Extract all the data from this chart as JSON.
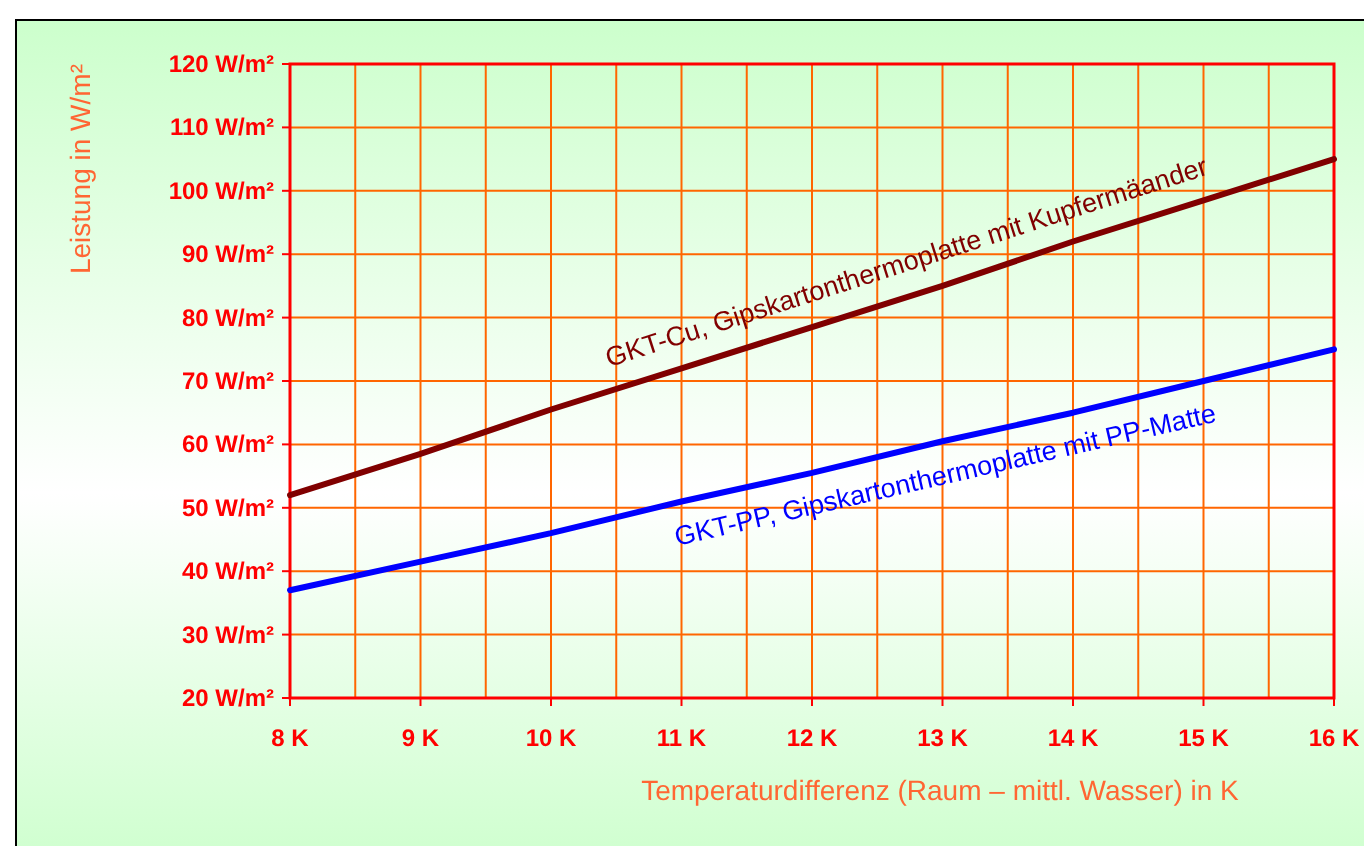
{
  "chart_data": {
    "type": "line",
    "xlabel": "Temperaturdifferenz (Raum – mittl. Wasser) in K",
    "ylabel": "Leistung in W/m²",
    "x": [
      8,
      9,
      10,
      11,
      12,
      13,
      14,
      15,
      16
    ],
    "series": [
      {
        "name": "GKT-Cu, Gipskartonthermoplatte mit Kupfermäander",
        "color": "#800000",
        "values": [
          52,
          58.5,
          65.5,
          72,
          78.5,
          85,
          92,
          98.5,
          105
        ]
      },
      {
        "name": "GKT-PP, Gipskartonthermoplatte mit PP-Matte",
        "color": "#0000ff",
        "values": [
          37,
          41.5,
          46,
          51,
          55.5,
          60.5,
          65,
          70,
          75
        ]
      }
    ],
    "xlim": [
      8,
      16
    ],
    "xticks": [
      {
        "value": 8,
        "label": "8 K"
      },
      {
        "value": 8.5,
        "label": null
      },
      {
        "value": 9,
        "label": "9 K"
      },
      {
        "value": 9.5,
        "label": null
      },
      {
        "value": 10,
        "label": "10 K"
      },
      {
        "value": 10.5,
        "label": null
      },
      {
        "value": 11,
        "label": "11 K"
      },
      {
        "value": 11.5,
        "label": null
      },
      {
        "value": 12,
        "label": "12 K"
      },
      {
        "value": 12.5,
        "label": null
      },
      {
        "value": 13,
        "label": "13 K"
      },
      {
        "value": 13.5,
        "label": null
      },
      {
        "value": 14,
        "label": "14 K"
      },
      {
        "value": 14.5,
        "label": null
      },
      {
        "value": 15,
        "label": "15 K"
      },
      {
        "value": 15.5,
        "label": null
      },
      {
        "value": 16,
        "label": "16 K"
      }
    ],
    "ylim": [
      20,
      120
    ],
    "yticks": [
      {
        "value": 20,
        "label": "20 W/m²"
      },
      {
        "value": 30,
        "label": "30 W/m²"
      },
      {
        "value": 40,
        "label": "40 W/m²"
      },
      {
        "value": 50,
        "label": "50 W/m²"
      },
      {
        "value": 60,
        "label": "60 W/m²"
      },
      {
        "value": 70,
        "label": "70 W/m²"
      },
      {
        "value": 80,
        "label": "80 W/m²"
      },
      {
        "value": 90,
        "label": "90 W/m²"
      },
      {
        "value": 100,
        "label": "100 W/m²"
      },
      {
        "value": 110,
        "label": "110 W/m²"
      },
      {
        "value": 120,
        "label": "120 W/m²"
      }
    ],
    "grid": true,
    "legend": false,
    "marker": "none",
    "line_style": "solid"
  }
}
